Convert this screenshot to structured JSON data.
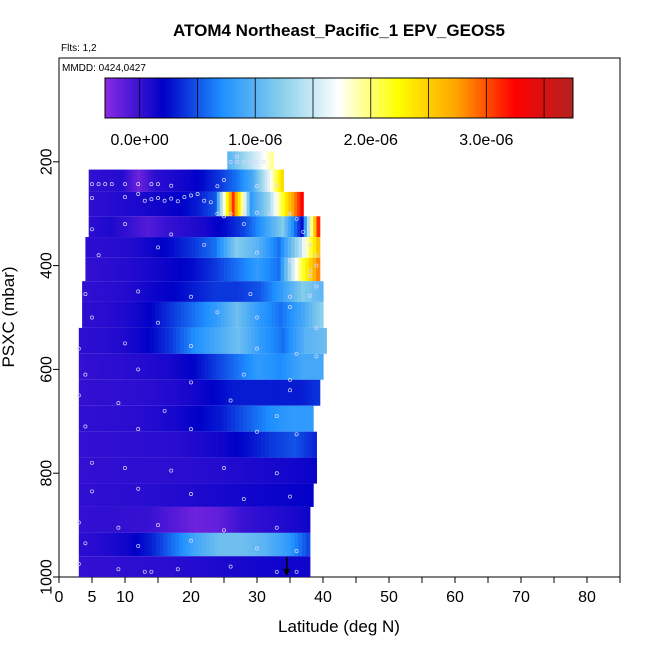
{
  "chart_data": {
    "type": "heatmap",
    "title": "ATOM4 Northeast_Pacific_1 EPV_GEOS5",
    "flights_label": "Flts: 1,2",
    "dates_label": "MMDD: 0424,0427",
    "xlabel": "Latitude (deg N)",
    "ylabel": "PSXC (mbar)",
    "xlim": [
      0,
      85
    ],
    "ylim": [
      1000,
      0
    ],
    "x_ticks": [
      0,
      5,
      10,
      20,
      30,
      40,
      50,
      60,
      70,
      80
    ],
    "y_ticks": [
      200,
      400,
      600,
      800,
      1000
    ],
    "colorbar": {
      "min": -3e-07,
      "max": 3.75e-06,
      "ticks": [
        0,
        1e-06,
        2e-06,
        3e-06
      ],
      "tick_labels": [
        "0.0e+00",
        "1.0e-06",
        "2.0e-06",
        "3.0e-06"
      ],
      "colors": [
        "#8a2be2",
        "#0000c8",
        "#1e90ff",
        "#87ceeb",
        "#ffffff",
        "#ffff00",
        "#ffa500",
        "#ff0000",
        "#b22222"
      ]
    },
    "layers": [
      {
        "p_top": 180,
        "p_bot": 220,
        "lat_min": 25.5,
        "lat_max": 32.5,
        "values": [
          1e-06,
          1.3e-06,
          1.6e-06,
          2e-06
        ]
      },
      {
        "p_top": 215,
        "p_bot": 258,
        "lat_min": 4.5,
        "lat_max": 34,
        "values": [
          2e-08,
          5e-08,
          8e-08,
          -2e-07,
          5e-08,
          1e-07,
          1.5e-07,
          2.5e-07,
          4e-07,
          6e-07,
          9e-07,
          1.6e-06,
          2.6e-06
        ]
      },
      {
        "p_top": 258,
        "p_bot": 305,
        "lat_min": 4.5,
        "lat_max": 37,
        "values": [
          4e-08,
          6e-08,
          9e-08,
          1.2e-07,
          1.5e-07,
          2e-07,
          3e-07,
          5e-07,
          3.1e-06,
          8e-07,
          1.3e-06,
          2.4e-06,
          3.4e-06
        ]
      },
      {
        "p_top": 305,
        "p_bot": 345,
        "lat_min": 4.5,
        "lat_max": 39.5,
        "values": [
          5e-08,
          1e-07,
          1e-08,
          -1e-07,
          1e-08,
          6e-08,
          1.2e-07,
          2.5e-07,
          4.5e-07,
          8e-07,
          1.2e-06,
          2.5e-07,
          3.7e-06
        ]
      },
      {
        "p_top": 345,
        "p_bot": 385,
        "lat_min": 4,
        "lat_max": 39.5,
        "values": [
          5e-08,
          6e-08,
          8e-08,
          1.5e-07,
          2.5e-07,
          4e-07,
          6e-07,
          1.2e-06,
          1e-06,
          6e-07,
          1.4e-06,
          2.8e-06
        ]
      },
      {
        "p_top": 385,
        "p_bot": 430,
        "lat_min": 4,
        "lat_max": 39.5,
        "values": [
          2e-08,
          5e-08,
          8e-08,
          1.2e-07,
          1.8e-07,
          2.5e-07,
          4e-07,
          6e-07,
          8e-07,
          6e-07,
          2e-06,
          3e-06
        ]
      },
      {
        "p_top": 430,
        "p_bot": 470,
        "lat_min": 3.5,
        "lat_max": 40,
        "values": [
          3e-08,
          5e-08,
          8e-08,
          1.5e-07,
          2e-07,
          3e-07,
          4e-07,
          4e-07,
          5e-07,
          8e-07,
          1.2e-06,
          1e-06
        ]
      },
      {
        "p_top": 470,
        "p_bot": 520,
        "lat_min": 3.5,
        "lat_max": 40,
        "values": [
          4e-08,
          6e-08,
          1e-07,
          2e-07,
          4e-07,
          6e-07,
          8e-07,
          1.1e-06,
          8e-07,
          6e-07,
          9e-07,
          1.3e-06
        ]
      },
      {
        "p_top": 520,
        "p_bot": 570,
        "lat_min": 3,
        "lat_max": 40.5,
        "values": [
          4e-08,
          6e-08,
          1e-07,
          2e-07,
          4e-07,
          7e-07,
          9e-07,
          1.1e-06,
          8e-07,
          6e-07,
          1e-06,
          1.1e-06
        ]
      },
      {
        "p_top": 570,
        "p_bot": 620,
        "lat_min": 3,
        "lat_max": 40,
        "values": [
          2e-08,
          4e-08,
          6e-08,
          8e-08,
          1.2e-07,
          2e-07,
          4e-07,
          6e-07,
          8e-07,
          7e-07,
          9e-07,
          9e-07
        ]
      },
      {
        "p_top": 620,
        "p_bot": 670,
        "lat_min": 3,
        "lat_max": 39.5,
        "values": [
          2e-08,
          3e-08,
          4e-08,
          5e-08,
          8e-08,
          1.2e-07,
          2e-07,
          3e-07,
          3e-07,
          3e-07,
          3e-07,
          4e-07
        ]
      },
      {
        "p_top": 670,
        "p_bot": 720,
        "lat_min": 3,
        "lat_max": 38.5,
        "values": [
          3e-08,
          4e-08,
          5e-08,
          8e-08,
          1.2e-07,
          2e-07,
          3e-07,
          5e-07,
          7e-07,
          8e-07,
          8e-07
        ]
      },
      {
        "p_top": 720,
        "p_bot": 770,
        "lat_min": 3,
        "lat_max": 39,
        "values": [
          2e-08,
          3e-08,
          4e-08,
          5e-08,
          6e-08,
          1e-07,
          1.5e-07,
          2.5e-07,
          4e-07,
          5e-07,
          3e-07
        ]
      },
      {
        "p_top": 770,
        "p_bot": 820,
        "lat_min": 3,
        "lat_max": 39,
        "values": [
          2e-08,
          3e-08,
          4e-08,
          4e-08,
          5e-08,
          6e-08,
          8e-08,
          1e-07,
          1.2e-07,
          1.4e-07,
          1.8e-07
        ]
      },
      {
        "p_top": 820,
        "p_bot": 865,
        "lat_min": 3,
        "lat_max": 38.5,
        "values": [
          3e-08,
          4e-08,
          5e-08,
          6e-08,
          8e-08,
          1e-07,
          1.2e-07,
          1.4e-07,
          1.6e-07,
          1.8e-07,
          2e-07
        ]
      },
      {
        "p_top": 865,
        "p_bot": 915,
        "lat_min": 3,
        "lat_max": 38,
        "values": [
          2e-08,
          3e-08,
          2e-08,
          0,
          -1e-07,
          -2e-07,
          -1.5e-07,
          0,
          5e-08,
          1e-07,
          1.5e-07
        ]
      },
      {
        "p_top": 915,
        "p_bot": 960,
        "lat_min": 3,
        "lat_max": 38,
        "values": [
          5e-08,
          8e-08,
          1.5e-07,
          3e-07,
          6e-07,
          9e-07,
          1.1e-06,
          1.1e-06,
          1e-06,
          8e-07,
          4e-07
        ]
      },
      {
        "p_top": 960,
        "p_bot": 1000,
        "lat_min": 3,
        "lat_max": 38,
        "values": [
          2e-08,
          3e-08,
          4e-08,
          5e-08,
          6e-08,
          8e-08,
          1e-07,
          1.2e-07,
          1.4e-07,
          1.5e-07,
          1.5e-07
        ]
      }
    ],
    "sample_points": [
      [
        5,
        243
      ],
      [
        6,
        243
      ],
      [
        7,
        243
      ],
      [
        8,
        243
      ],
      [
        10,
        243
      ],
      [
        12,
        243
      ],
      [
        14,
        243
      ],
      [
        15,
        243
      ],
      [
        17,
        246
      ],
      [
        24,
        247
      ],
      [
        30,
        247
      ],
      [
        33,
        245
      ],
      [
        5,
        270
      ],
      [
        10,
        268
      ],
      [
        12,
        262
      ],
      [
        13,
        275
      ],
      [
        14,
        272
      ],
      [
        15,
        270
      ],
      [
        16,
        275
      ],
      [
        17,
        271
      ],
      [
        18,
        276
      ],
      [
        19,
        268
      ],
      [
        20,
        265
      ],
      [
        21,
        262
      ],
      [
        22,
        275
      ],
      [
        23,
        278
      ],
      [
        24,
        300
      ],
      [
        26,
        300
      ],
      [
        28,
        300
      ],
      [
        30,
        298
      ],
      [
        32,
        300
      ],
      [
        35,
        300
      ],
      [
        26,
        200
      ],
      [
        27,
        200
      ],
      [
        28,
        200
      ],
      [
        29,
        200
      ],
      [
        30,
        200
      ],
      [
        31,
        200
      ],
      [
        27,
        190
      ],
      [
        25,
        235
      ],
      [
        5,
        330
      ],
      [
        10,
        320
      ],
      [
        17,
        340
      ],
      [
        25,
        305
      ],
      [
        28,
        320
      ],
      [
        36,
        310
      ],
      [
        37,
        335
      ],
      [
        38,
        360
      ],
      [
        39,
        380
      ],
      [
        39,
        400
      ],
      [
        6,
        380
      ],
      [
        15,
        365
      ],
      [
        22,
        360
      ],
      [
        30,
        375
      ],
      [
        35,
        390
      ],
      [
        38,
        410
      ],
      [
        38,
        420
      ],
      [
        39,
        440
      ],
      [
        4,
        455
      ],
      [
        12,
        450
      ],
      [
        20,
        460
      ],
      [
        29,
        455
      ],
      [
        35,
        460
      ],
      [
        38,
        458
      ],
      [
        5,
        500
      ],
      [
        15,
        510
      ],
      [
        24,
        490
      ],
      [
        30,
        500
      ],
      [
        35,
        480
      ],
      [
        39,
        520
      ],
      [
        3,
        560
      ],
      [
        10,
        550
      ],
      [
        20,
        555
      ],
      [
        30,
        560
      ],
      [
        36,
        570
      ],
      [
        39,
        575
      ],
      [
        4,
        610
      ],
      [
        12,
        600
      ],
      [
        20,
        625
      ],
      [
        28,
        610
      ],
      [
        35,
        620
      ],
      [
        35,
        640
      ],
      [
        3,
        650
      ],
      [
        9,
        665
      ],
      [
        16,
        680
      ],
      [
        26,
        660
      ],
      [
        33,
        690
      ],
      [
        4,
        710
      ],
      [
        12,
        715
      ],
      [
        20,
        715
      ],
      [
        30,
        720
      ],
      [
        36,
        725
      ],
      [
        5,
        780
      ],
      [
        10,
        790
      ],
      [
        17,
        795
      ],
      [
        25,
        790
      ],
      [
        33,
        800
      ],
      [
        5,
        835
      ],
      [
        12,
        830
      ],
      [
        20,
        840
      ],
      [
        28,
        850
      ],
      [
        35,
        845
      ],
      [
        3,
        895
      ],
      [
        9,
        905
      ],
      [
        15,
        900
      ],
      [
        25,
        910
      ],
      [
        33,
        905
      ],
      [
        4,
        935
      ],
      [
        12,
        940
      ],
      [
        20,
        930
      ],
      [
        30,
        945
      ],
      [
        36,
        950
      ],
      [
        3,
        975
      ],
      [
        9,
        985
      ],
      [
        13,
        990
      ],
      [
        14,
        990
      ],
      [
        18,
        985
      ],
      [
        26,
        980
      ],
      [
        33,
        990
      ],
      [
        36,
        990
      ]
    ],
    "marker_arrow_lat": 34.5,
    "grid": false,
    "legend": "top (horizontal colorbar)"
  }
}
